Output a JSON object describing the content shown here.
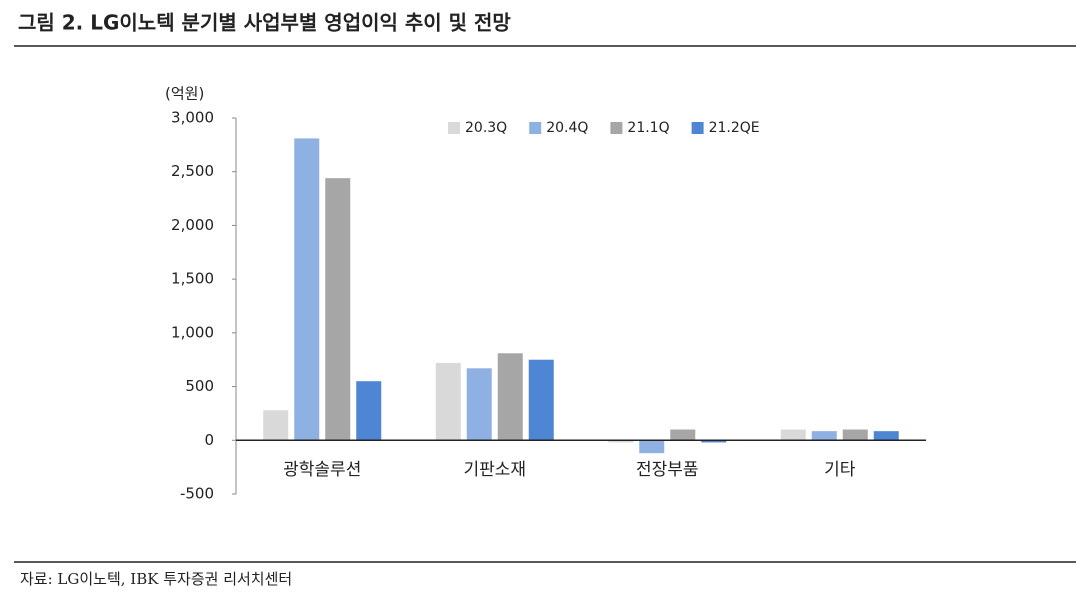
{
  "chart_data": {
    "type": "bar",
    "title": "그림 2. LG이노텍 분기별 사업부별 영업이익 추이 및 전망",
    "y_axis_label": "(억원)",
    "source": "자료: LG이노텍, IBK 투자증권 리서치센터",
    "categories": [
      "광학솔루션",
      "기판소재",
      "전장부품",
      "기타"
    ],
    "series": [
      {
        "name": "20.3Q",
        "color": "#d9d9d9",
        "values": [
          280,
          720,
          -20,
          100
        ]
      },
      {
        "name": "20.4Q",
        "color": "#8fb0e2",
        "values": [
          2810,
          670,
          -120,
          85
        ]
      },
      {
        "name": "21.1Q",
        "color": "#a6a6a6",
        "values": [
          2440,
          810,
          100,
          100
        ]
      },
      {
        "name": "21.2QE",
        "color": "#4f86d4",
        "values": [
          550,
          750,
          -20,
          85
        ]
      }
    ],
    "ylim": [
      -500,
      3000
    ],
    "yticks": [
      -500,
      0,
      500,
      {
        "value": 1000,
        "label": "1,000"
      },
      {
        "value": 1500,
        "label": "1,500"
      },
      {
        "value": 2000,
        "label": "2,000"
      },
      {
        "value": 2500,
        "label": "2,500"
      },
      {
        "value": 3000,
        "label": "3,000"
      }
    ],
    "grid": false,
    "legend": "top"
  }
}
